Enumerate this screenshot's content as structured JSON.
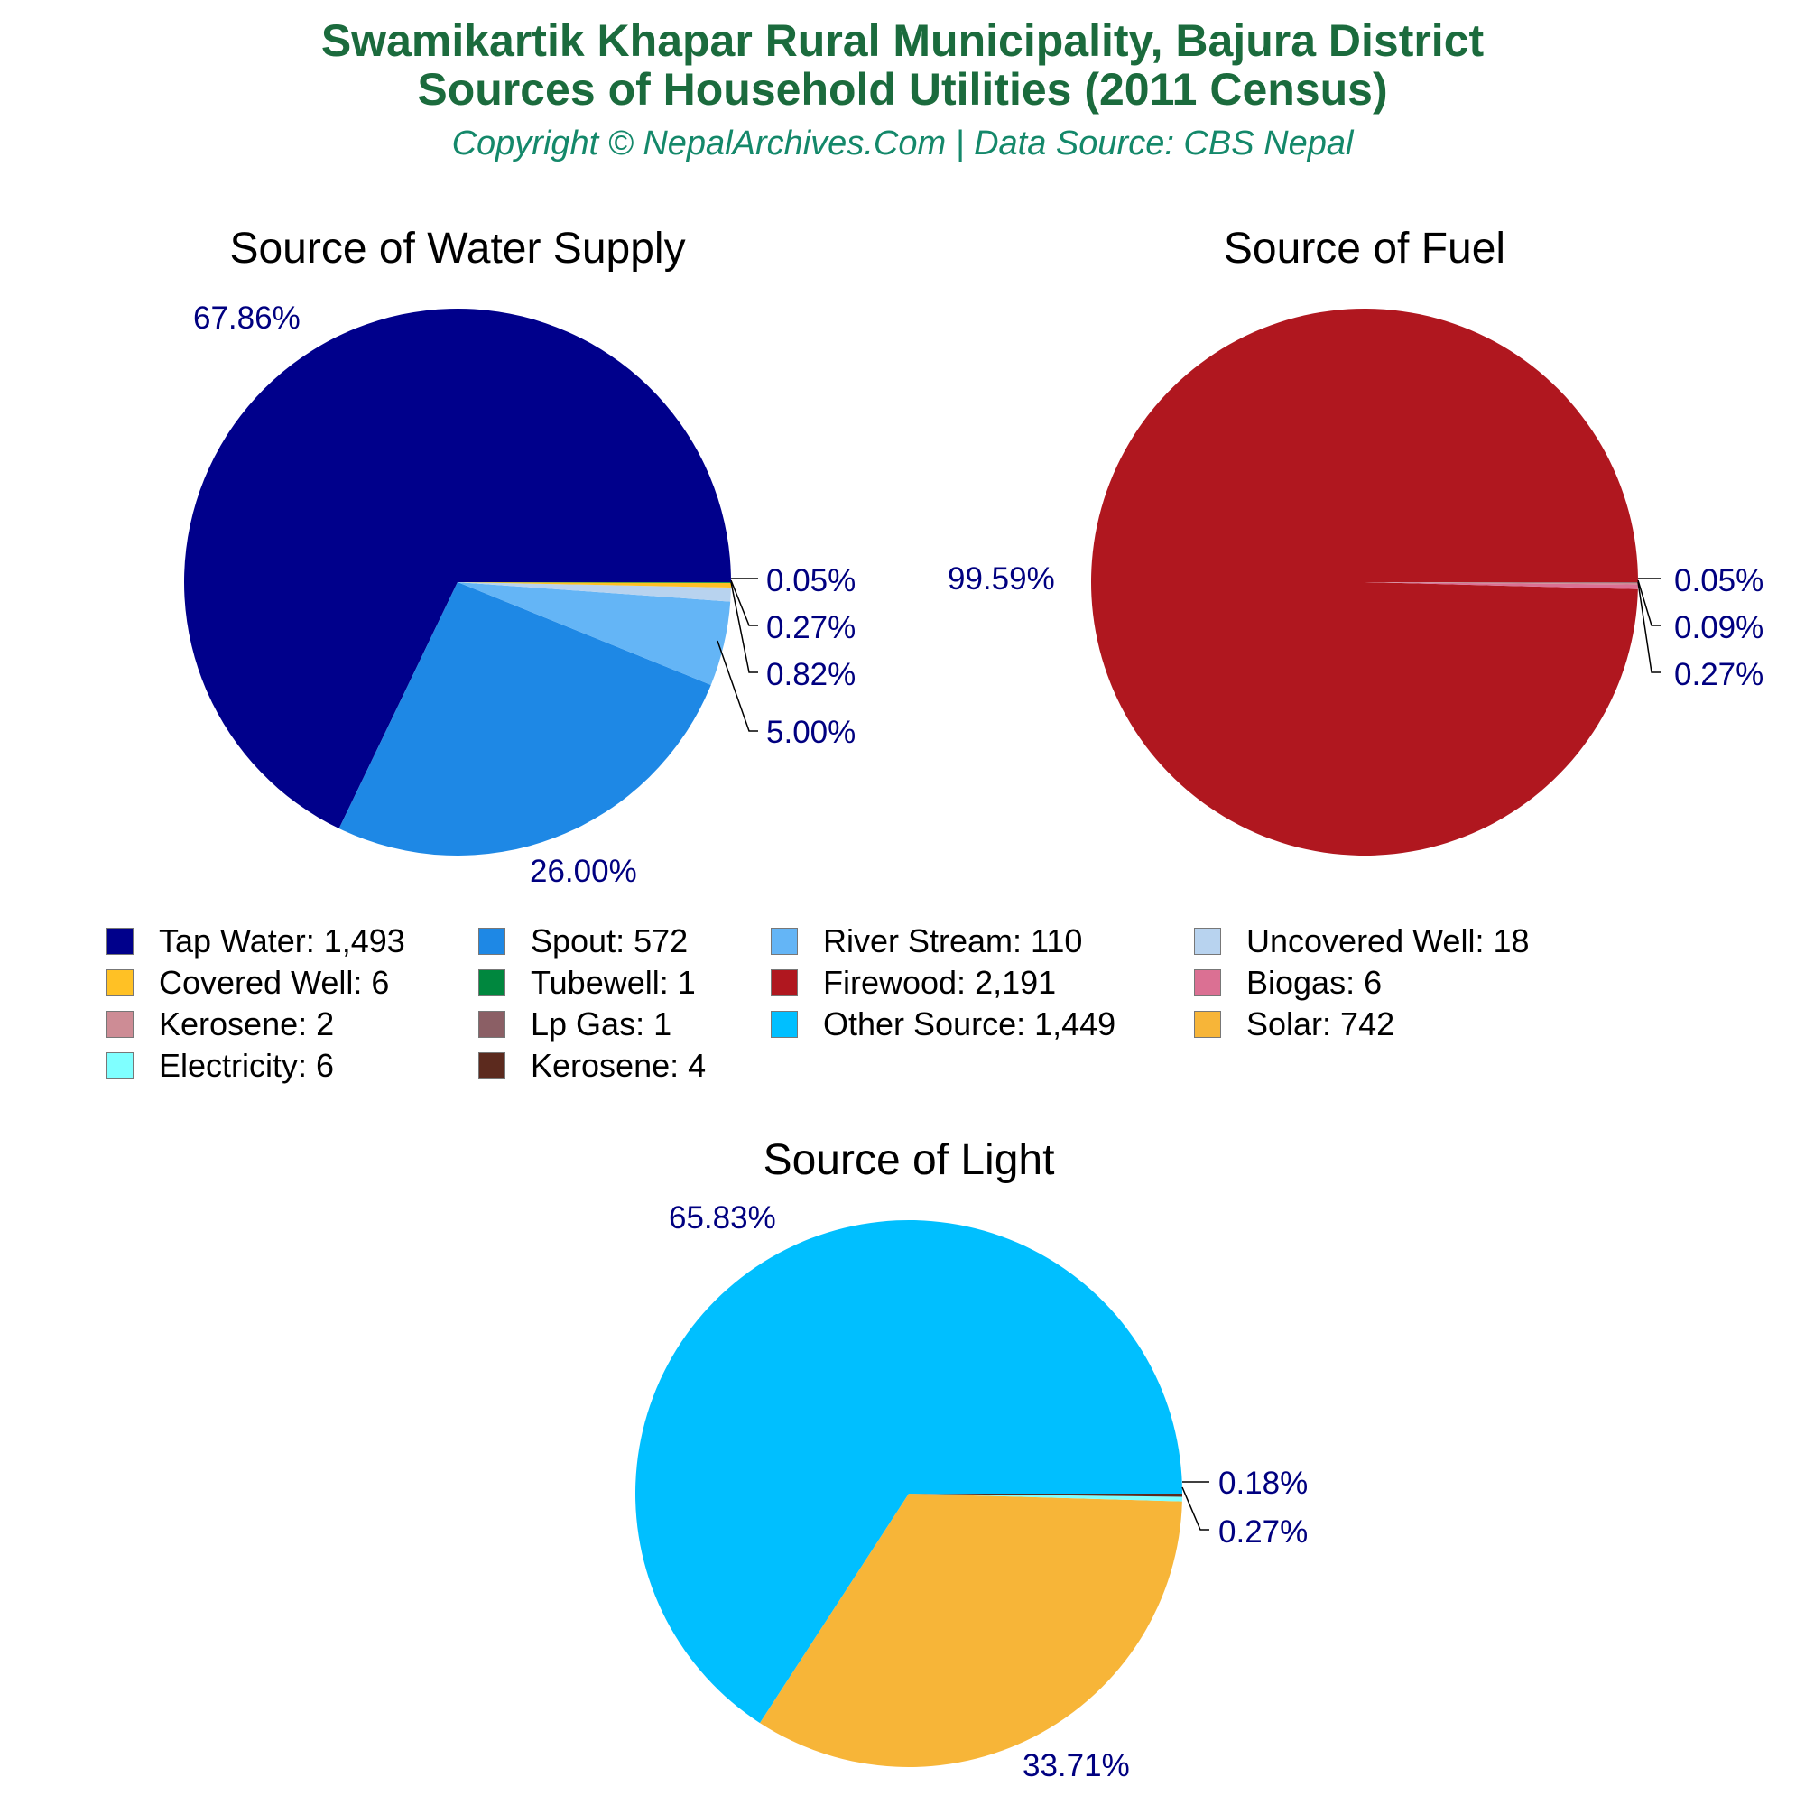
{
  "header": {
    "title_line1": "Swamikartik Khapar Rural Municipality, Bajura District",
    "title_line2": "Sources of Household Utilities (2011 Census)",
    "subtitle": "Copyright © NepalArchives.Com | Data Source: CBS Nepal"
  },
  "charts": {
    "water": {
      "title": "Source of Water Supply",
      "labels": [
        "67.86%",
        "26.00%",
        "5.00%",
        "0.82%",
        "0.27%",
        "0.05%"
      ]
    },
    "fuel": {
      "title": "Source of Fuel",
      "labels": [
        "99.59%",
        "0.05%",
        "0.09%",
        "0.27%"
      ]
    },
    "light": {
      "title": "Source of Light",
      "labels": [
        "65.83%",
        "33.71%",
        "0.18%",
        "0.27%"
      ]
    }
  },
  "legend": [
    {
      "label": "Tap Water: 1,493",
      "color": "#00008b"
    },
    {
      "label": "Spout: 572",
      "color": "#1e88e5"
    },
    {
      "label": "River Stream: 110",
      "color": "#64b5f6"
    },
    {
      "label": "Uncovered Well: 18",
      "color": "#b8d3ef"
    },
    {
      "label": "Covered Well: 6",
      "color": "#ffc125"
    },
    {
      "label": "Tubewell: 1",
      "color": "#00873e"
    },
    {
      "label": "Firewood: 2,191",
      "color": "#b0171f"
    },
    {
      "label": "Biogas: 6",
      "color": "#db7093"
    },
    {
      "label": "Kerosene: 2",
      "color": "#cd8c95"
    },
    {
      "label": "Lp Gas: 1",
      "color": "#8b5f65"
    },
    {
      "label": "Other Source: 1,449",
      "color": "#00bfff"
    },
    {
      "label": "Solar: 742",
      "color": "#f7b538"
    },
    {
      "label": "Electricity: 6",
      "color": "#7fffff"
    },
    {
      "label": "Kerosene: 4",
      "color": "#5c2a1e"
    }
  ],
  "chart_data": [
    {
      "type": "pie",
      "title": "Source of Water Supply",
      "categories": [
        "Tap Water",
        "Spout",
        "River Stream",
        "Uncovered Well",
        "Covered Well",
        "Tubewell"
      ],
      "values": [
        1493,
        572,
        110,
        18,
        6,
        1
      ],
      "percentages": [
        67.86,
        26.0,
        5.0,
        0.82,
        0.27,
        0.05
      ],
      "colors": [
        "#00008b",
        "#1e88e5",
        "#64b5f6",
        "#b8d3ef",
        "#ffc125",
        "#00873e"
      ]
    },
    {
      "type": "pie",
      "title": "Source of Fuel",
      "categories": [
        "Firewood",
        "Biogas",
        "Kerosene",
        "Lp Gas"
      ],
      "values": [
        2191,
        6,
        2,
        1
      ],
      "percentages": [
        99.59,
        0.27,
        0.09,
        0.05
      ],
      "colors": [
        "#b0171f",
        "#db7093",
        "#cd8c95",
        "#8b5f65"
      ]
    },
    {
      "type": "pie",
      "title": "Source of Light",
      "categories": [
        "Other Source",
        "Solar",
        "Electricity",
        "Kerosene"
      ],
      "values": [
        1449,
        742,
        6,
        4
      ],
      "percentages": [
        65.83,
        33.71,
        0.27,
        0.18
      ],
      "colors": [
        "#00bfff",
        "#f7b538",
        "#7fffff",
        "#5c2a1e"
      ]
    }
  ]
}
